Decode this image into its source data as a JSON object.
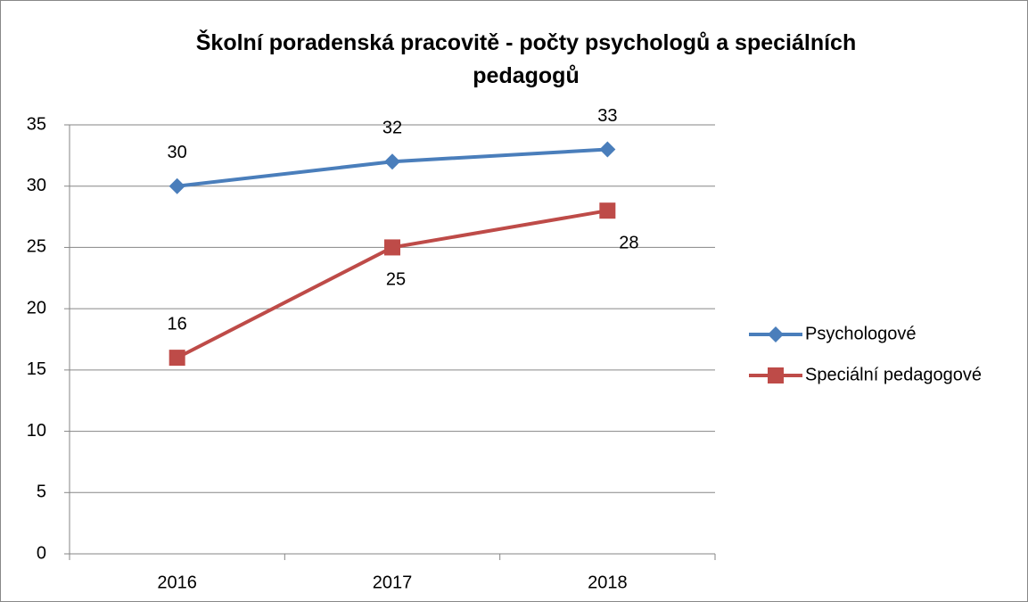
{
  "chart_data": {
    "type": "line",
    "title": "Školní poradenská pracovitě - počty psychologů a speciálních pedagogů",
    "categories": [
      "2016",
      "2017",
      "2018"
    ],
    "series": [
      {
        "name": "Psychologové",
        "color": "#4a7ebb",
        "marker": "diamond",
        "values": [
          30,
          32,
          33
        ]
      },
      {
        "name": "Speciální pedagogové",
        "color": "#be4b48",
        "marker": "square",
        "values": [
          16,
          25,
          28
        ]
      }
    ],
    "ylim": [
      0,
      35
    ],
    "yticks": [
      0,
      5,
      10,
      15,
      20,
      25,
      30,
      35
    ],
    "grid": true,
    "legend": "right",
    "data_labels": true
  }
}
